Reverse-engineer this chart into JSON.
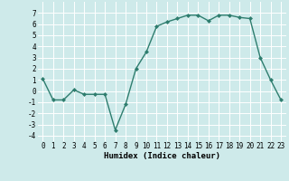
{
  "x": [
    0,
    1,
    2,
    3,
    4,
    5,
    6,
    7,
    8,
    9,
    10,
    11,
    12,
    13,
    14,
    15,
    16,
    17,
    18,
    19,
    20,
    21,
    22,
    23
  ],
  "y": [
    1.1,
    -0.8,
    -0.8,
    0.1,
    -0.3,
    -0.3,
    -0.3,
    -3.5,
    -1.2,
    2.0,
    3.5,
    5.8,
    6.2,
    6.5,
    6.8,
    6.8,
    6.3,
    6.8,
    6.8,
    6.6,
    6.5,
    3.0,
    1.0,
    -0.8
  ],
  "line_color": "#2e7d6e",
  "marker": "D",
  "marker_size": 2.0,
  "bg_color": "#ceeaea",
  "grid_color": "#ffffff",
  "xlabel": "Humidex (Indice chaleur)",
  "xlim": [
    -0.5,
    23.5
  ],
  "ylim": [
    -4.5,
    8.0
  ],
  "yticks": [
    -4,
    -3,
    -2,
    -1,
    0,
    1,
    2,
    3,
    4,
    5,
    6,
    7
  ],
  "xticks": [
    0,
    1,
    2,
    3,
    4,
    5,
    6,
    7,
    8,
    9,
    10,
    11,
    12,
    13,
    14,
    15,
    16,
    17,
    18,
    19,
    20,
    21,
    22,
    23
  ],
  "tick_fontsize": 5.5,
  "xlabel_fontsize": 6.5,
  "linewidth": 1.0
}
